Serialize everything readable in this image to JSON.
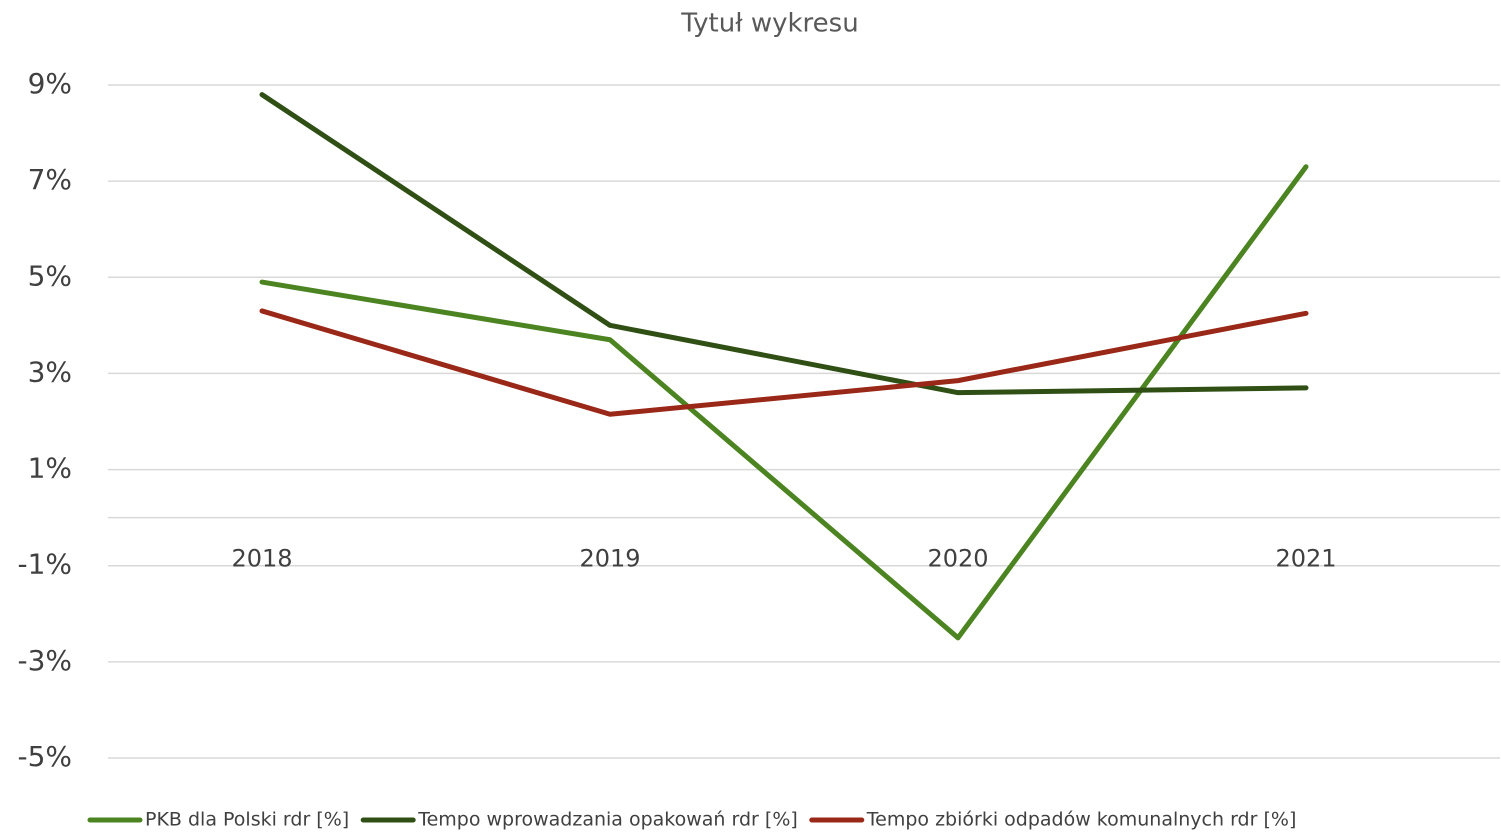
{
  "chart_data": {
    "type": "line",
    "title": "Tytuł wykresu",
    "categories": [
      "2018",
      "2019",
      "2020",
      "2021"
    ],
    "series": [
      {
        "name": "PKB dla Polski rdr [%]",
        "color": "#4b8420",
        "values": [
          4.9,
          3.7,
          -2.5,
          7.3
        ]
      },
      {
        "name": "Tempo wprowadzania opakowań rdr [%]",
        "color": "#2f4f15",
        "values": [
          8.8,
          4.0,
          2.6,
          2.7
        ]
      },
      {
        "name": "Tempo zbiórki odpadów komunalnych rdr [%]",
        "color": "#9a2818",
        "values": [
          4.3,
          2.15,
          2.85,
          4.25
        ]
      }
    ],
    "ylim": [
      -5,
      9
    ],
    "yticks": [
      {
        "value": 9,
        "label": "9%"
      },
      {
        "value": 7,
        "label": "7%"
      },
      {
        "value": 5,
        "label": "5%"
      },
      {
        "value": 3,
        "label": "3%"
      },
      {
        "value": 1,
        "label": "1%"
      },
      {
        "value": -1,
        "label": "-1%"
      },
      {
        "value": -3,
        "label": "-3%"
      },
      {
        "value": -5,
        "label": "-5%"
      }
    ],
    "grid": true,
    "legend": "bottom"
  }
}
